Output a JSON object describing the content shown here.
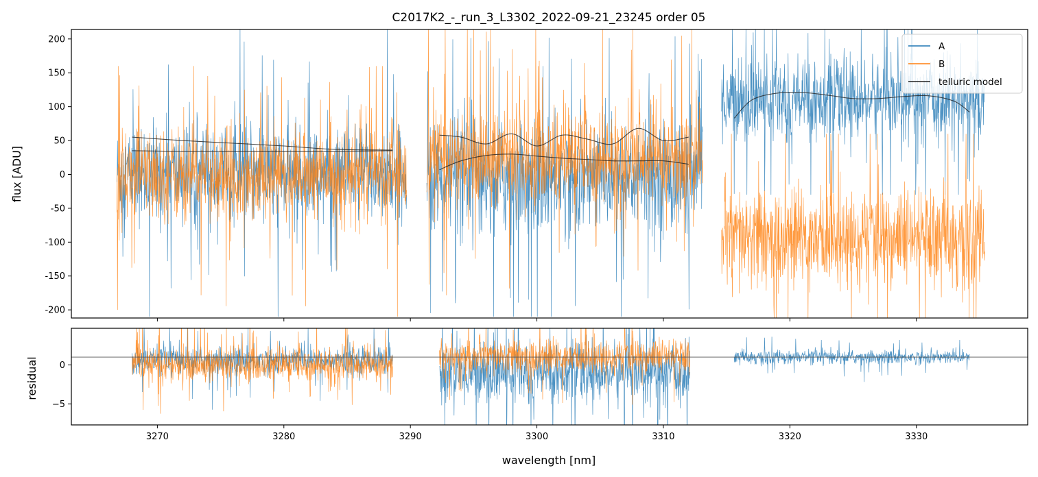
{
  "chart_data": {
    "type": "line",
    "title": "C2017K2_-_run_3_L3302_2022-09-21_23245  order 05",
    "xlabel": "wavelength [nm]",
    "colors": {
      "A": "#1f77b4",
      "B": "#ff7f0e",
      "model": "#222222",
      "zero": "#555555"
    },
    "main_panel": {
      "ylabel": "flux [ADU]",
      "xlim": [
        3263.2,
        3338.8
      ],
      "ylim": [
        -212,
        214
      ],
      "yticks": [
        -200,
        -150,
        -100,
        -50,
        0,
        50,
        100,
        150,
        200
      ],
      "xticks": [
        3270,
        3280,
        3290,
        3300,
        3310,
        3320,
        3330
      ],
      "segments": [
        {
          "x_range": [
            3266.8,
            3289.7
          ],
          "A": {
            "mean": 0,
            "spread": 65,
            "extreme_top": 215,
            "extreme_bottom": -210
          },
          "B": {
            "mean": 0,
            "spread": 60,
            "extreme_top": 160,
            "extreme_bottom": -210
          },
          "models": [
            {
              "x": [
                3268,
                3272,
                3276,
                3280,
                3284,
                3288.6
              ],
              "y": [
                55,
                50,
                46,
                42,
                37,
                36
              ]
            },
            {
              "x": [
                3268,
                3272,
                3276,
                3280,
                3284,
                3288.6
              ],
              "y": [
                35,
                34,
                34,
                34,
                34,
                35
              ]
            }
          ]
        },
        {
          "x_range": [
            3291.3,
            3313.1
          ],
          "A": {
            "mean": -5,
            "spread": 75,
            "extreme_top": 215,
            "extreme_bottom": -210
          },
          "B": {
            "mean": 25,
            "spread": 65,
            "extreme_top": 215,
            "extreme_bottom": -190
          },
          "models": [
            {
              "x": [
                3292.3,
                3294,
                3296,
                3298,
                3300,
                3302,
                3304,
                3306,
                3308,
                3310,
                3312
              ],
              "y": [
                58,
                55,
                45,
                60,
                42,
                58,
                52,
                45,
                68,
                50,
                55
              ]
            },
            {
              "x": [
                3292.3,
                3294,
                3296,
                3298,
                3300,
                3302,
                3304,
                3306,
                3308,
                3310,
                3312
              ],
              "y": [
                7,
                20,
                28,
                30,
                27,
                24,
                22,
                20,
                20,
                20,
                15
              ]
            }
          ]
        },
        {
          "x_range": [
            3314.6,
            3335.4
          ],
          "A": {
            "mean": 110,
            "spread": 55,
            "extreme_top": 215,
            "extreme_bottom": -30
          },
          "B": {
            "mean": -95,
            "spread": 65,
            "extreme_top": 60,
            "extreme_bottom": -212
          },
          "models": [
            {
              "x": [
                3315.6,
                3317,
                3319,
                3321,
                3323,
                3325,
                3327,
                3329,
                3331,
                3333,
                3334.2
              ],
              "y": [
                83,
                110,
                120,
                121,
                117,
                112,
                112,
                115,
                116,
                108,
                92
              ]
            }
          ]
        }
      ],
      "legend": {
        "position": "upper right",
        "entries": [
          {
            "label": "A",
            "color": "#1f77b4"
          },
          {
            "label": "B",
            "color": "#ff7f0e"
          },
          {
            "label": "telluric model",
            "color": "#222222"
          }
        ]
      }
    },
    "residual_panel": {
      "ylabel": "residual",
      "xlim": [
        3263.2,
        3338.8
      ],
      "ylim": [
        -7.7,
        4.7
      ],
      "yticks": [
        -5,
        0
      ],
      "xticks": [
        3270,
        3280,
        3290,
        3300,
        3310,
        3320,
        3330
      ],
      "reference_line_y": 1,
      "segments": [
        {
          "x_range": [
            3268,
            3288.6
          ],
          "A": {
            "mean": 0.6,
            "spread": 1.6
          },
          "B": {
            "mean": 0,
            "spread": 2.0
          }
        },
        {
          "x_range": [
            3292.3,
            3312.1
          ],
          "A": {
            "mean": -1,
            "spread": 3.5
          },
          "B": {
            "mean": 1,
            "spread": 2.0
          }
        },
        {
          "x_range": [
            3315.6,
            3334.2
          ],
          "A": {
            "mean": 1,
            "spread": 0.8
          }
        }
      ]
    }
  }
}
